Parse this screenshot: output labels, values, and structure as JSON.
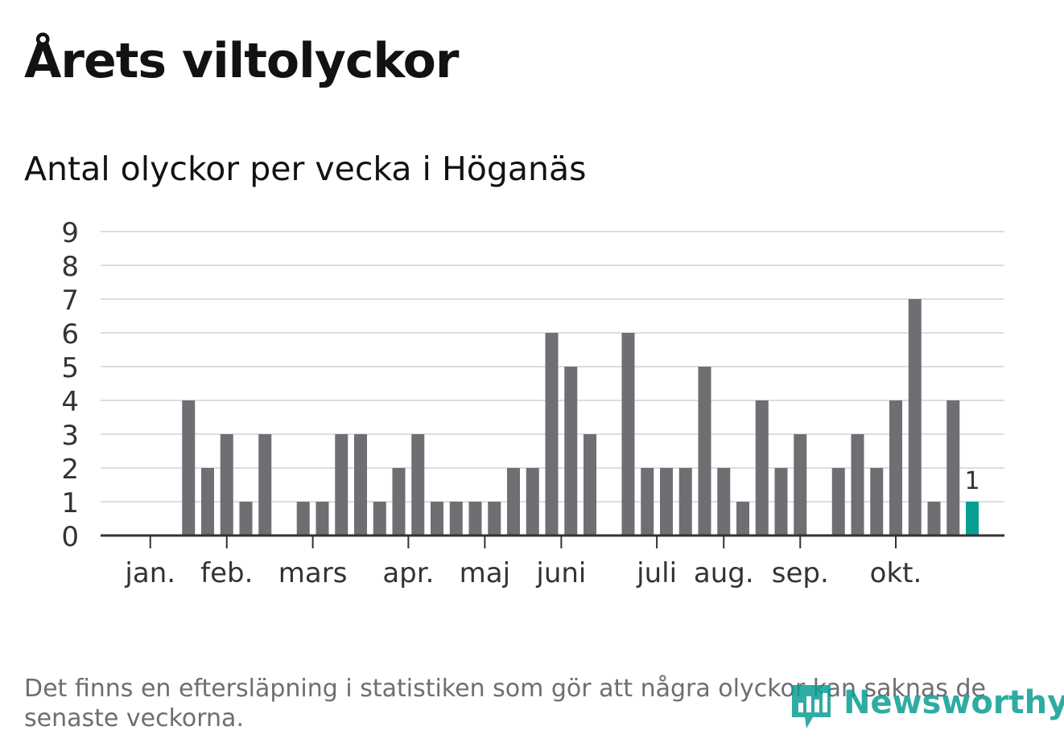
{
  "title": "Årets viltolyckor",
  "subtitle": "Antal olyckor per vecka i Höganäs",
  "footnote": "Det finns en eftersläpning i statistiken som gör att några olyckor kan saknas de senaste veckorna.",
  "brand": {
    "name": "Newsworthy",
    "color": "#0a9e93"
  },
  "chart_data": {
    "type": "bar",
    "title": "Antal olyckor per vecka i Höganäs",
    "xlabel": "",
    "ylabel": "",
    "ylim": [
      0,
      9
    ],
    "yticks": [
      "0",
      "1",
      "2",
      "3",
      "4",
      "5",
      "6",
      "7",
      "8",
      "9"
    ],
    "grid": true,
    "month_labels": [
      "jan.",
      "feb.",
      "mars",
      "apr.",
      "maj",
      "juni",
      "juli",
      "aug.",
      "sep.",
      "okt."
    ],
    "values": [
      0,
      0,
      0,
      4,
      2,
      3,
      1,
      3,
      0,
      1,
      1,
      3,
      3,
      1,
      2,
      3,
      1,
      1,
      1,
      1,
      2,
      2,
      6,
      5,
      3,
      0,
      6,
      2,
      2,
      2,
      5,
      2,
      1,
      4,
      2,
      3,
      0,
      2,
      3,
      2,
      4,
      7,
      1,
      4,
      1
    ],
    "highlight_index": 44,
    "highlight_label": "1",
    "colors": {
      "bar": "#6e6e73",
      "highlight": "#0a9e93",
      "grid": "#dddddd",
      "axis": "#333333"
    }
  }
}
